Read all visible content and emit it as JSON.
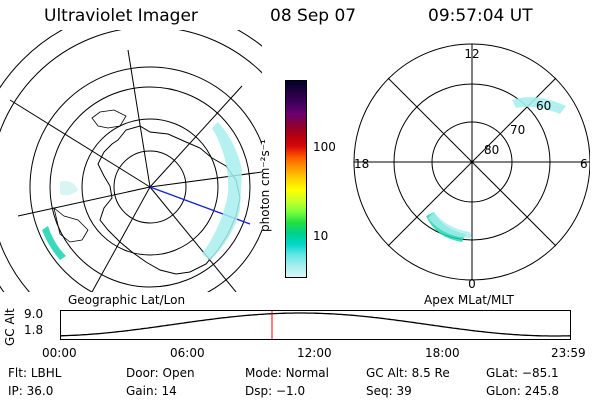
{
  "header": {
    "title": "Ultraviolet Imager",
    "date": "08 Sep 07",
    "time": "09:57:04 UT"
  },
  "left_map": {
    "label": "Geographic Lat/Lon"
  },
  "colorbar": {
    "unit_label": "photon cm⁻²s⁻¹",
    "ticks": [
      "100",
      "10"
    ],
    "colors": [
      "#00002a",
      "#24003f",
      "#3e005a",
      "#6a0070",
      "#8a0038",
      "#b00012",
      "#d80808",
      "#ff5a00",
      "#ff9a00",
      "#ffd200",
      "#ffff00",
      "#c8ff28",
      "#7cff3a",
      "#22e040",
      "#00d08c",
      "#00d8c8",
      "#66e6e6",
      "#a8eeee",
      "#d6f6f6"
    ]
  },
  "right_map": {
    "label": "Apex MLat/MLT",
    "mlt_labels": {
      "top": "12",
      "left": "18",
      "right": "6",
      "bottom": "0"
    },
    "lat_labels": [
      "60",
      "70",
      "80"
    ]
  },
  "timeline": {
    "axis_label": "GC Alt",
    "y_ticks": [
      "9.0",
      "1.8"
    ],
    "x_ticks": [
      "00:00",
      "06:00",
      "12:00",
      "18:00",
      "23:59"
    ],
    "marker_time": "09:57",
    "marker_color": "#ff0000"
  },
  "info": {
    "row1": [
      {
        "label": "Flt:",
        "value": "LBHL"
      },
      {
        "label": "Door:",
        "value": "Open"
      },
      {
        "label": "Mode:",
        "value": "Normal"
      },
      {
        "label": "GC Alt:",
        "value": "8.5 Re"
      },
      {
        "label": "GLat:",
        "value": "−85.1"
      }
    ],
    "row2": [
      {
        "label": "IP:",
        "value": "36.0"
      },
      {
        "label": "Gain:",
        "value": "14"
      },
      {
        "label": "Dsp:",
        "value": "−1.0"
      },
      {
        "label": "Seq:",
        "value": "39"
      },
      {
        "label": "GLon:",
        "value": "245.8"
      }
    ]
  }
}
